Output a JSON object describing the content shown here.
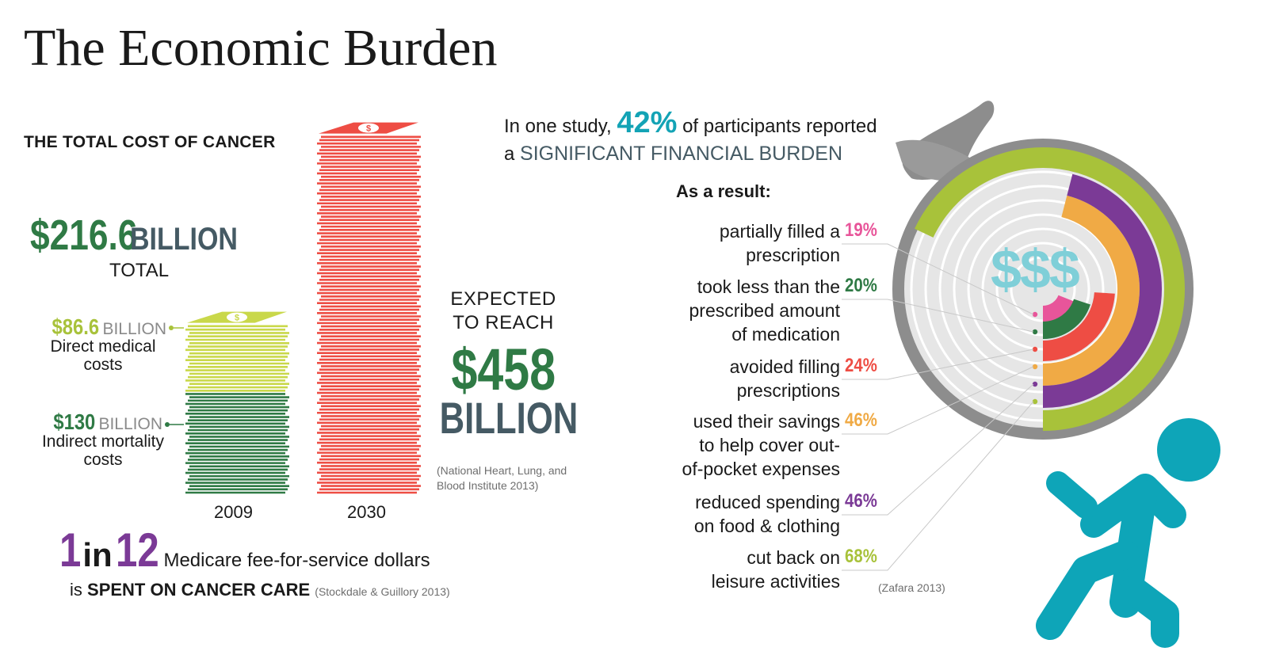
{
  "title": "The Economic Burden",
  "total_cost": {
    "heading": "THE TOTAL COST OF CANCER",
    "amount": "$216.6",
    "unit": "BILLION",
    "total_label": "TOTAL",
    "direct": {
      "amount": "$86.6",
      "unit": "BILLION",
      "label_line1": "Direct medical",
      "label_line2": "costs"
    },
    "indirect": {
      "amount": "$130",
      "unit": "BILLION",
      "label_line1": "Indirect mortality",
      "label_line2": "costs"
    },
    "year_2009": "2009",
    "year_2030": "2030",
    "expected_line1": "EXPECTED",
    "expected_line2": "TO REACH",
    "projected_amount": "$458",
    "projected_unit": "BILLION",
    "citation_line1": "(National Heart, Lung, and",
    "citation_line2": "Blood Institute 2013)"
  },
  "medicare": {
    "one": "1",
    "in": "in",
    "twelve": "12",
    "line1": "Medicare fee-for-service dollars",
    "line2_prefix": "is",
    "line2_bold": "SPENT ON CANCER CARE",
    "citation": "(Stockdale & Guillory 2013)"
  },
  "study": {
    "prefix": "In one study,",
    "pct": "42%",
    "suffix": "of participants reported",
    "line2_prefix": "a",
    "line2_emph": "SIGNIFICANT FINANCIAL BURDEN",
    "as_result": "As a result:",
    "citation": "(Zafara 2013)",
    "dollar_sign": "$$$"
  },
  "results": [
    {
      "line1": "partially filled a",
      "line2": "prescription",
      "line3": "",
      "pct": "19%",
      "color": "#e8559a"
    },
    {
      "line1": "took less than the",
      "line2": "prescribed amount",
      "line3": "of medication",
      "pct": "20%",
      "color": "#2f7a45"
    },
    {
      "line1": "avoided filling",
      "line2": "prescriptions",
      "line3": "",
      "pct": "24%",
      "color": "#ee4d44"
    },
    {
      "line1": "used their savings",
      "line2": "to help cover out-",
      "line3": "of-pocket expenses",
      "pct": "46%",
      "color": "#f0aa45"
    },
    {
      "line1": "reduced spending",
      "line2": "on food & clothing",
      "line3": "",
      "pct": "46%",
      "color": "#7b3a96"
    },
    {
      "line1": "cut back on",
      "line2": "leisure activities",
      "line3": "",
      "pct": "68%",
      "color": "#a8c23a"
    }
  ],
  "chart_data": [
    {
      "type": "bar",
      "categories": [
        "2009",
        "2030"
      ],
      "series": [
        {
          "name": "Indirect mortality costs",
          "values": [
            130,
            null
          ]
        },
        {
          "name": "Direct medical costs",
          "values": [
            86.6,
            null
          ]
        },
        {
          "name": "",
          "values": [
            null,
            458
          ]
        }
      ],
      "unit": "BILLION",
      "colors": [
        "#2f7a45",
        "#c9d84a",
        "#ee4d44"
      ]
    },
    {
      "type": "pie",
      "categories": [
        "partially filled a prescription",
        "took less than the prescribed amount of medication",
        "avoided filling prescriptions",
        "used their savings to help cover out-of-pocket expenses",
        "reduced spending on food & clothing",
        "cut back on leisure activities"
      ],
      "values": [
        19,
        20,
        24,
        46,
        46,
        68
      ],
      "unit": "%",
      "colors": [
        "#e8559a",
        "#2f7a45",
        "#ee4d44",
        "#f0aa45",
        "#7b3a96",
        "#a8c23a"
      ]
    }
  ]
}
